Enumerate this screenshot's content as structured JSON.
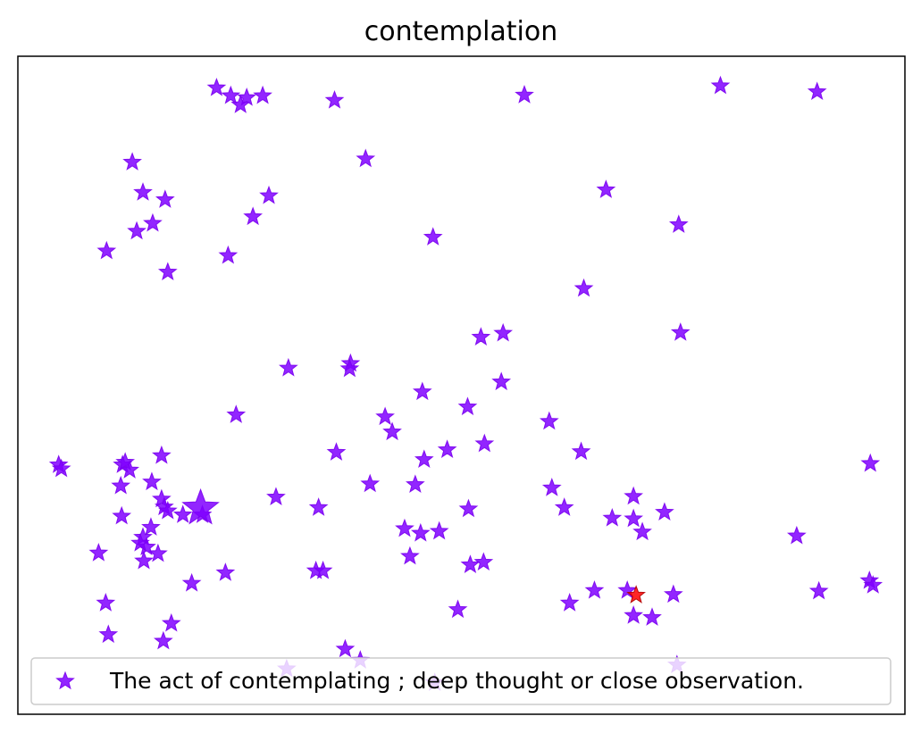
{
  "chart_data": {
    "type": "scatter",
    "title": "contemplation",
    "xlabel": "",
    "ylabel": "",
    "xlim": [
      0,
      100
    ],
    "ylim": [
      0,
      100
    ],
    "axes_visible": false,
    "grid": false,
    "legend": {
      "position": "lower-center",
      "label": "The act of contemplating ; deep thought or close observation."
    },
    "colors": {
      "main": "#7f00ff",
      "highlight": "#ff0000",
      "marker_edge": "#7a00f0"
    },
    "marker": "star",
    "series": [
      {
        "name": "The act of contemplating ; deep thought or close observation.",
        "points": [
          {
            "x": 22.4,
            "y": 95.2
          },
          {
            "x": 24.0,
            "y": 94.0
          },
          {
            "x": 25.8,
            "y": 93.7
          },
          {
            "x": 25.1,
            "y": 92.6
          },
          {
            "x": 27.6,
            "y": 94.0
          },
          {
            "x": 35.7,
            "y": 93.3
          },
          {
            "x": 57.1,
            "y": 94.1
          },
          {
            "x": 79.2,
            "y": 95.5
          },
          {
            "x": 90.1,
            "y": 94.6
          },
          {
            "x": 12.9,
            "y": 83.9
          },
          {
            "x": 39.2,
            "y": 84.4
          },
          {
            "x": 14.1,
            "y": 79.3
          },
          {
            "x": 16.6,
            "y": 78.2
          },
          {
            "x": 15.2,
            "y": 74.6
          },
          {
            "x": 13.4,
            "y": 73.4
          },
          {
            "x": 26.5,
            "y": 75.6
          },
          {
            "x": 28.3,
            "y": 78.8
          },
          {
            "x": 66.3,
            "y": 79.7
          },
          {
            "x": 74.5,
            "y": 74.4
          },
          {
            "x": 46.8,
            "y": 72.5
          },
          {
            "x": 10.0,
            "y": 70.4
          },
          {
            "x": 23.7,
            "y": 69.7
          },
          {
            "x": 16.9,
            "y": 67.2
          },
          {
            "x": 63.8,
            "y": 64.7
          },
          {
            "x": 52.2,
            "y": 57.3
          },
          {
            "x": 54.7,
            "y": 57.9
          },
          {
            "x": 74.7,
            "y": 58.0
          },
          {
            "x": 30.5,
            "y": 52.6
          },
          {
            "x": 37.5,
            "y": 53.3
          },
          {
            "x": 37.4,
            "y": 52.5
          },
          {
            "x": 54.5,
            "y": 50.5
          },
          {
            "x": 45.6,
            "y": 49.0
          },
          {
            "x": 50.7,
            "y": 46.7
          },
          {
            "x": 24.6,
            "y": 45.5
          },
          {
            "x": 41.4,
            "y": 45.2
          },
          {
            "x": 42.2,
            "y": 42.9
          },
          {
            "x": 59.9,
            "y": 44.5
          },
          {
            "x": 52.6,
            "y": 41.1
          },
          {
            "x": 48.4,
            "y": 40.2
          },
          {
            "x": 35.9,
            "y": 39.8
          },
          {
            "x": 45.8,
            "y": 38.7
          },
          {
            "x": 63.5,
            "y": 39.9
          },
          {
            "x": 4.6,
            "y": 37.9
          },
          {
            "x": 4.9,
            "y": 37.3
          },
          {
            "x": 16.2,
            "y": 39.3
          },
          {
            "x": 11.8,
            "y": 37.9
          },
          {
            "x": 12.1,
            "y": 38.3
          },
          {
            "x": 12.6,
            "y": 37.1
          },
          {
            "x": 96.1,
            "y": 38.1
          },
          {
            "x": 11.6,
            "y": 34.7
          },
          {
            "x": 15.1,
            "y": 35.3
          },
          {
            "x": 39.7,
            "y": 35.0
          },
          {
            "x": 44.8,
            "y": 34.9
          },
          {
            "x": 60.2,
            "y": 34.4
          },
          {
            "x": 16.2,
            "y": 32.7
          },
          {
            "x": 29.1,
            "y": 33.0
          },
          {
            "x": 69.4,
            "y": 33.1
          },
          {
            "x": 16.5,
            "y": 31.5
          },
          {
            "x": 16.9,
            "y": 30.9
          },
          {
            "x": 11.7,
            "y": 30.1
          },
          {
            "x": 18.6,
            "y": 30.3
          },
          {
            "x": 20.8,
            "y": 30.3
          },
          {
            "x": 33.9,
            "y": 31.4
          },
          {
            "x": 50.8,
            "y": 31.2
          },
          {
            "x": 61.6,
            "y": 31.4
          },
          {
            "x": 72.9,
            "y": 30.7
          },
          {
            "x": 67.0,
            "y": 29.8
          },
          {
            "x": 69.4,
            "y": 29.7
          },
          {
            "x": 15.0,
            "y": 28.4
          },
          {
            "x": 43.6,
            "y": 28.2
          },
          {
            "x": 45.4,
            "y": 27.5
          },
          {
            "x": 47.5,
            "y": 27.8
          },
          {
            "x": 70.4,
            "y": 27.7
          },
          {
            "x": 87.8,
            "y": 27.1
          },
          {
            "x": 14.1,
            "y": 26.9
          },
          {
            "x": 14.5,
            "y": 25.4
          },
          {
            "x": 13.8,
            "y": 26.0
          },
          {
            "x": 9.1,
            "y": 24.5
          },
          {
            "x": 15.8,
            "y": 24.4
          },
          {
            "x": 14.2,
            "y": 23.3
          },
          {
            "x": 44.2,
            "y": 24.0
          },
          {
            "x": 51.0,
            "y": 22.7
          },
          {
            "x": 52.5,
            "y": 23.1
          },
          {
            "x": 23.4,
            "y": 21.5
          },
          {
            "x": 33.6,
            "y": 21.8
          },
          {
            "x": 34.4,
            "y": 21.8
          },
          {
            "x": 19.6,
            "y": 19.9
          },
          {
            "x": 65.0,
            "y": 18.8
          },
          {
            "x": 68.7,
            "y": 18.8
          },
          {
            "x": 73.9,
            "y": 18.2
          },
          {
            "x": 90.3,
            "y": 18.7
          },
          {
            "x": 96.0,
            "y": 20.3
          },
          {
            "x": 96.4,
            "y": 19.6
          },
          {
            "x": 9.9,
            "y": 16.9
          },
          {
            "x": 62.2,
            "y": 16.9
          },
          {
            "x": 49.6,
            "y": 15.9
          },
          {
            "x": 69.4,
            "y": 15.0
          },
          {
            "x": 71.5,
            "y": 14.7
          },
          {
            "x": 17.3,
            "y": 13.8
          },
          {
            "x": 10.2,
            "y": 12.1
          },
          {
            "x": 16.4,
            "y": 11.1
          },
          {
            "x": 36.9,
            "y": 9.9
          },
          {
            "x": 38.6,
            "y": 8.2
          },
          {
            "x": 30.3,
            "y": 6.9
          },
          {
            "x": 74.3,
            "y": 7.5
          },
          {
            "x": 47.0,
            "y": 4.8
          }
        ]
      }
    ],
    "highlight_points": [
      {
        "x": 20.6,
        "y": 31.3,
        "size": "large",
        "color": "#7f00ff"
      },
      {
        "x": 69.7,
        "y": 18.1,
        "size": "normal",
        "color": "#ff0000"
      }
    ]
  }
}
